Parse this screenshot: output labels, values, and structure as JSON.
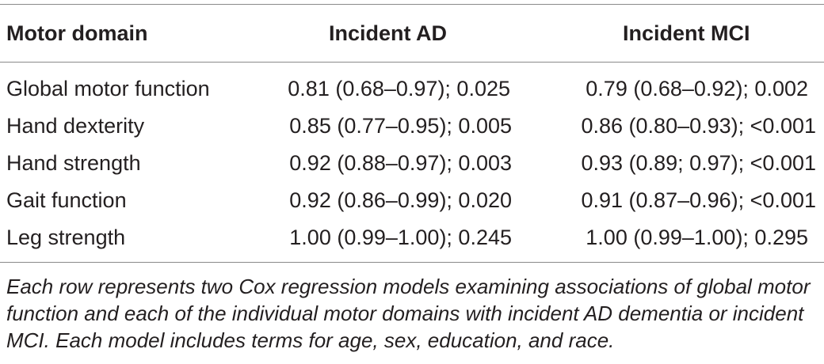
{
  "table": {
    "headers": {
      "domain": "Motor domain",
      "ad": "Incident AD",
      "mci": "Incident MCI"
    },
    "rows": [
      {
        "domain": "Global motor function",
        "ad": "0.81 (0.68–0.97); 0.025",
        "mci": "0.79 (0.68–0.92); 0.002"
      },
      {
        "domain": "Hand dexterity",
        "ad": "0.85 (0.77–0.95); 0.005",
        "mci": "0.86 (0.80–0.93); <0.001"
      },
      {
        "domain": "Hand strength",
        "ad": "0.92 (0.88–0.97); 0.003",
        "mci": "0.93 (0.89; 0.97); <0.001"
      },
      {
        "domain": "Gait function",
        "ad": "0.92 (0.86–0.99); 0.020",
        "mci": "0.91 (0.87–0.96); <0.001"
      },
      {
        "domain": "Leg strength",
        "ad": "1.00 (0.99–1.00); 0.245",
        "mci": "1.00 (0.99–1.00); 0.295"
      }
    ],
    "footnote": "Each row represents two Cox regression models examining associations of global motor function and each of the individual motor domains with incident AD dementia or incident MCI. Each model includes terms for age, sex, education, and race."
  }
}
